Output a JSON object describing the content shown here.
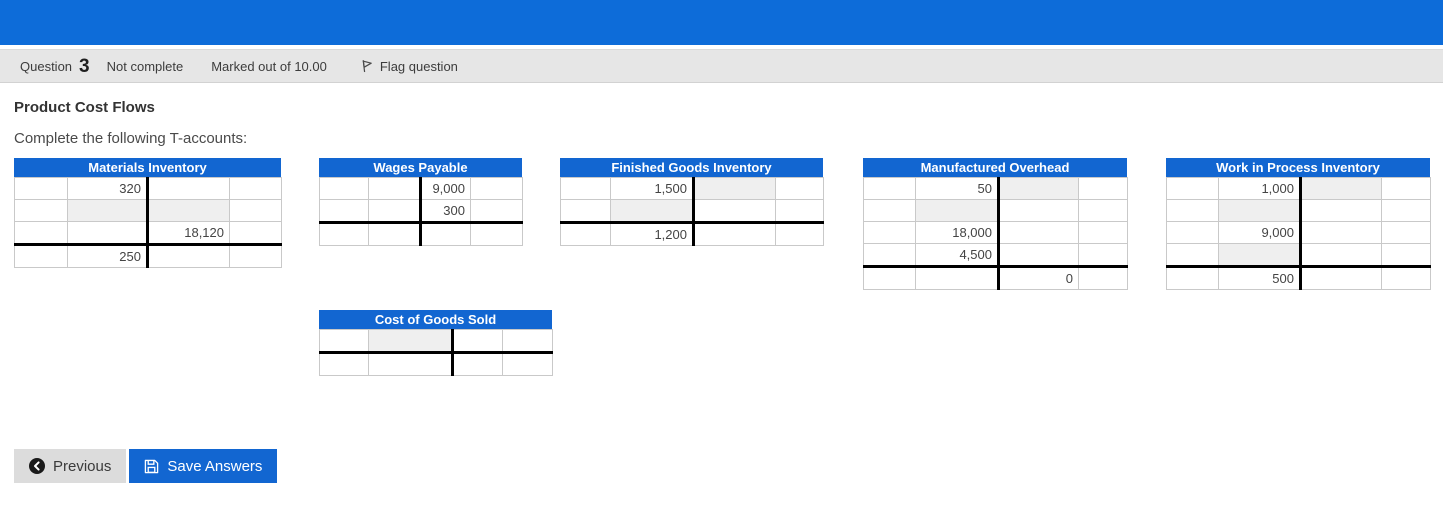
{
  "colors": {
    "topbar_blue": "#0d6cd9",
    "accent_blue": "#1266d1",
    "bar_gray": "#e6e6e6",
    "input_gray": "#efefef"
  },
  "question_bar": {
    "question_label": "Question",
    "question_number": "3",
    "status": "Not complete",
    "marked": "Marked out of 10.00",
    "flag_label": "Flag question"
  },
  "content": {
    "title": "Product Cost Flows",
    "instruction": "Complete the following T-accounts:"
  },
  "t_accounts": [
    {
      "title": "Materials Inventory",
      "rows": [
        {
          "debit": "320"
        },
        {
          "debit_input": true,
          "credit_input": true
        },
        {
          "credit": "18,120",
          "total_line": true
        },
        {
          "debit": "250"
        }
      ]
    },
    {
      "title": "Wages Payable",
      "rows": [
        {
          "credit": "9,000"
        },
        {
          "credit": "300",
          "total_line": true
        },
        {}
      ]
    },
    {
      "title": "Finished Goods Inventory",
      "rows": [
        {
          "debit": "1,500",
          "credit_input": true
        },
        {
          "debit_input": true,
          "total_line": true
        },
        {
          "debit": "1,200"
        }
      ]
    },
    {
      "title": "Manufactured Overhead",
      "rows": [
        {
          "debit": "50",
          "credit_input": true
        },
        {
          "debit_input": true
        },
        {
          "debit": "18,000"
        },
        {
          "debit": "4,500",
          "total_line": true
        },
        {
          "credit": "0"
        }
      ]
    },
    {
      "title": "Work in Process Inventory",
      "rows": [
        {
          "debit": "1,000",
          "credit_input": true
        },
        {
          "debit_input": true
        },
        {
          "debit": "9,000"
        },
        {
          "debit_input": true,
          "total_line": true
        },
        {
          "debit": "500"
        }
      ]
    },
    {
      "title": "Cost of Goods Sold",
      "rows": [
        {
          "debit_input": true,
          "total_line": true
        },
        {}
      ]
    }
  ],
  "buttons": {
    "previous": "Previous",
    "save": "Save Answers"
  }
}
